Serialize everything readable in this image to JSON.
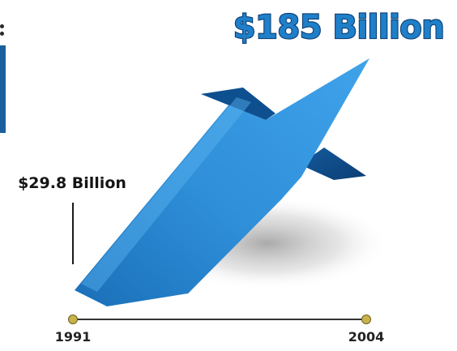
{
  "chart_data": {
    "type": "line",
    "categories": [
      "1991",
      "2004"
    ],
    "values": [
      29.8,
      185
    ],
    "data_labels": [
      "$29.8 Billion",
      "$185 Billion"
    ],
    "title": "",
    "xlabel": "",
    "ylabel": "",
    "grid": false,
    "legend": "none"
  },
  "colors": {
    "arrow_light": "#3a9be0",
    "arrow_mid": "#1c74bf",
    "arrow_dark": "#0e4f8f",
    "arrow_shadow_side": "#0b3f76",
    "title_fill": "#1f7fc9",
    "title_stroke": "#0c3f75",
    "axis_dot": "#c8b24a",
    "axis_line": "#333333"
  }
}
